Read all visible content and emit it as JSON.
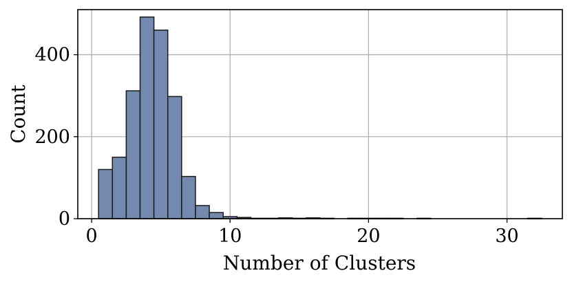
{
  "chart_data": {
    "type": "bar",
    "subtype": "histogram",
    "title": "",
    "xlabel": "Number of Clusters",
    "ylabel": "Count",
    "xlim": [
      -1,
      34
    ],
    "ylim": [
      0,
      510
    ],
    "xticks": [
      0,
      10,
      20,
      30
    ],
    "yticks": [
      0,
      200,
      400
    ],
    "grid": true,
    "bar_color": "#7489b0",
    "edge_color": "#1a1a1a",
    "bin_width": 1,
    "bins": [
      {
        "x": 1,
        "count": 120
      },
      {
        "x": 2,
        "count": 150
      },
      {
        "x": 3,
        "count": 312
      },
      {
        "x": 4,
        "count": 492
      },
      {
        "x": 5,
        "count": 460
      },
      {
        "x": 6,
        "count": 298
      },
      {
        "x": 7,
        "count": 103
      },
      {
        "x": 8,
        "count": 32
      },
      {
        "x": 9,
        "count": 15
      },
      {
        "x": 10,
        "count": 5
      },
      {
        "x": 11,
        "count": 3
      },
      {
        "x": 12,
        "count": 1
      },
      {
        "x": 13,
        "count": 1
      },
      {
        "x": 14,
        "count": 2
      },
      {
        "x": 15,
        "count": 1
      },
      {
        "x": 16,
        "count": 2
      },
      {
        "x": 17,
        "count": 1
      },
      {
        "x": 18,
        "count": 0
      },
      {
        "x": 19,
        "count": 1
      },
      {
        "x": 20,
        "count": 1
      },
      {
        "x": 21,
        "count": 1
      },
      {
        "x": 22,
        "count": 1
      },
      {
        "x": 23,
        "count": 0
      },
      {
        "x": 24,
        "count": 1
      },
      {
        "x": 25,
        "count": 0
      },
      {
        "x": 26,
        "count": 0
      },
      {
        "x": 27,
        "count": 0
      },
      {
        "x": 28,
        "count": 0
      },
      {
        "x": 29,
        "count": 0
      },
      {
        "x": 30,
        "count": 0
      },
      {
        "x": 31,
        "count": 0
      },
      {
        "x": 32,
        "count": 1
      }
    ]
  }
}
